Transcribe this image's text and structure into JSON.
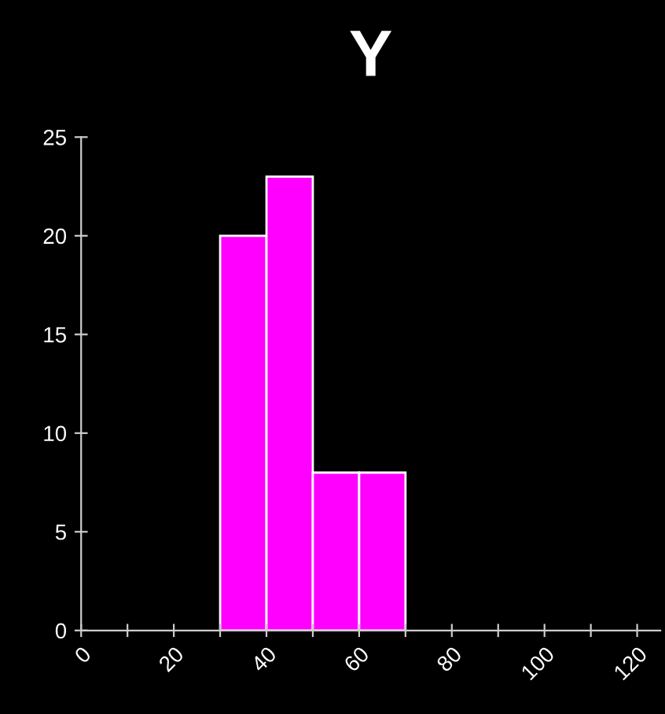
{
  "chart_data": {
    "type": "histogram",
    "title": "Y",
    "bins": [
      30,
      40,
      50,
      60,
      70
    ],
    "values": [
      20,
      23,
      8,
      8
    ],
    "color": "#ff00ff",
    "xlim": [
      0,
      125
    ],
    "xticks": [
      0,
      {
        "value": 10,
        "label": null
      },
      20,
      {
        "value": 30,
        "label": null
      },
      40,
      {
        "value": 50,
        "label": null
      },
      60,
      {
        "value": 70,
        "label": null
      },
      80,
      {
        "value": 90,
        "label": null
      },
      100,
      {
        "value": 110,
        "label": null
      },
      120
    ],
    "ylim": [
      0,
      25
    ],
    "yticks": [
      0,
      5,
      10,
      15,
      20,
      25
    ],
    "grid": false,
    "legend": false
  }
}
